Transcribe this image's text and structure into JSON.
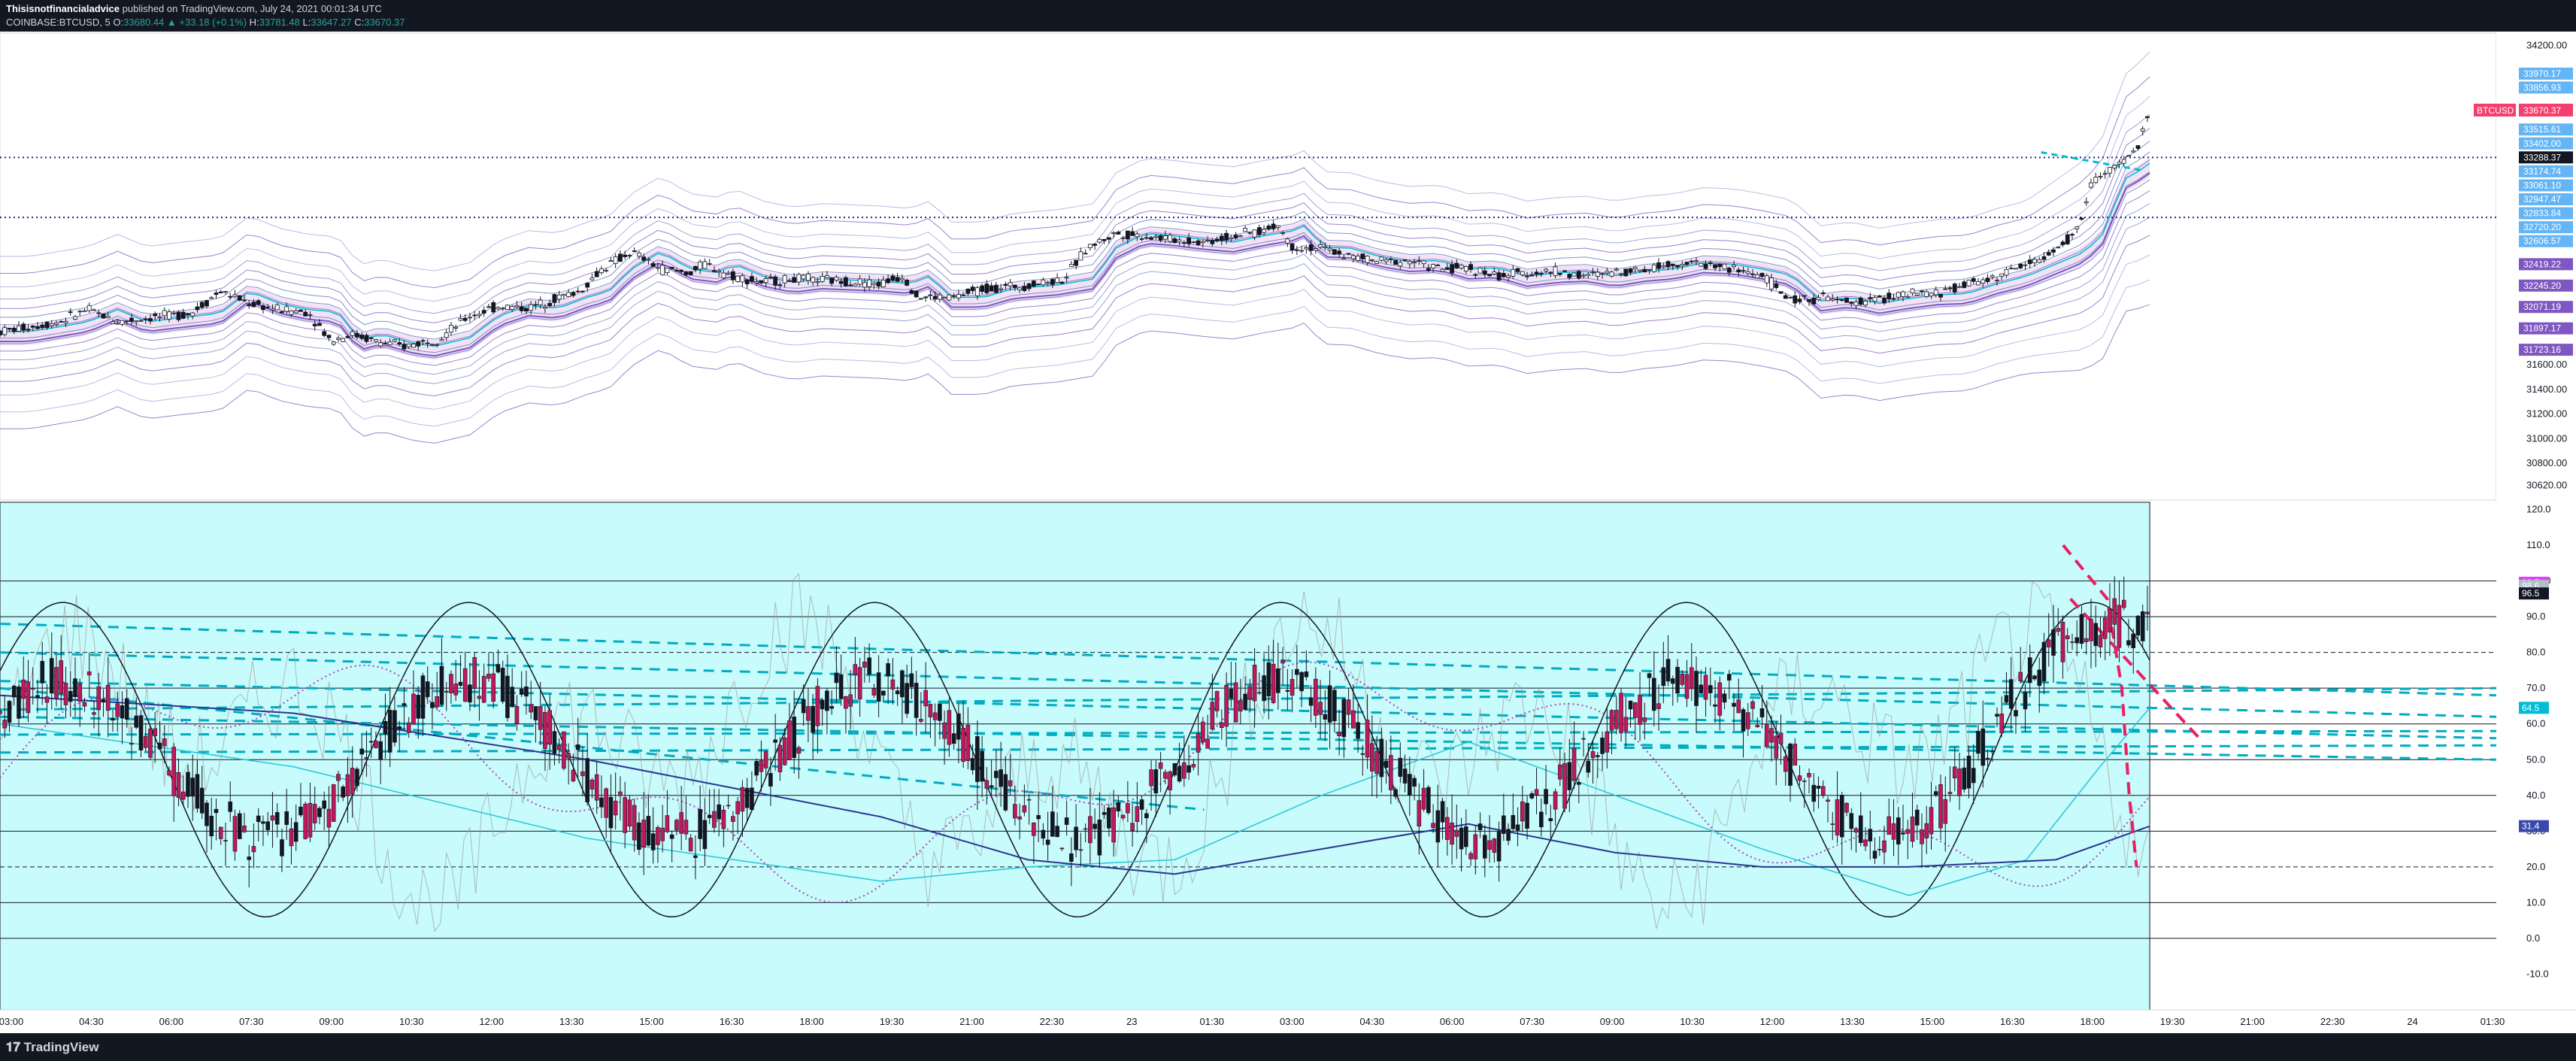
{
  "header": {
    "publisher": "Thisisnotfinancialadvice",
    "published_text": "published on TradingView.com, July 24, 2021 00:01:34 UTC",
    "symbol": "COINBASE:BTCUSD, 5",
    "open_label": "O:",
    "open_value": "33680.44",
    "change_value": "▲ +33.18 (+0.1%)",
    "high_label": "H:",
    "high_value": "33781.48",
    "low_label": "L:",
    "low_value": "33647.27",
    "close_label": "C:",
    "close_value": "33670.37"
  },
  "footer": {
    "logo_text": "TradingView"
  },
  "colors": {
    "up": "#ffffff",
    "down": "#c2185b",
    "osc_bg": "#c8fbfb",
    "accent_cyan": "#00bcd4",
    "pink": "#e91e63"
  },
  "chart_data": [
    {
      "type": "candlestick",
      "panel": "price",
      "ylim": [
        30500,
        34300
      ],
      "y_ticks": [
        "34200.00",
        "31600.00",
        "31400.00",
        "31200.00",
        "31000.00",
        "30800.00",
        "30620.00"
      ],
      "y_tick_values": [
        34200,
        31600,
        31400,
        31200,
        31000,
        30800,
        30620
      ],
      "price_badges": [
        {
          "label": "33970.17",
          "value": 33970.17,
          "color": "#64b5f6"
        },
        {
          "label": "33856.93",
          "value": 33856.93,
          "color": "#64b5f6"
        },
        {
          "label": "BTCUSD",
          "label2": "33670.37",
          "value": 33670.37,
          "color": "#f23f6d"
        },
        {
          "label": "33515.61",
          "value": 33515.61,
          "color": "#64b5f6"
        },
        {
          "label": "33402.00",
          "value": 33402.0,
          "color": "#64b5f6"
        },
        {
          "label": "33288.37",
          "value": 33288.37,
          "color": "#131722"
        },
        {
          "label": "33174.74",
          "value": 33174.74,
          "color": "#64b5f6"
        },
        {
          "label": "33061.10",
          "value": 33061.1,
          "color": "#64b5f6"
        },
        {
          "label": "32947.47",
          "value": 32947.47,
          "color": "#64b5f6"
        },
        {
          "label": "32833.84",
          "value": 32833.84,
          "color": "#64b5f6"
        },
        {
          "label": "32720.20",
          "value": 32720.2,
          "color": "#64b5f6"
        },
        {
          "label": "32606.57",
          "value": 32606.57,
          "color": "#64b5f6"
        },
        {
          "label": "32419.22",
          "value": 32419.22,
          "color": "#7e57c2"
        },
        {
          "label": "32245.20",
          "value": 32245.2,
          "color": "#7e57c2"
        },
        {
          "label": "32071.19",
          "value": 32071.19,
          "color": "#7e57c2"
        },
        {
          "label": "31897.17",
          "value": 31897.17,
          "color": "#7e57c2"
        },
        {
          "label": "31723.16",
          "value": 31723.16,
          "color": "#7e57c2"
        }
      ],
      "horizontal_levels": [
        33288.37,
        32800
      ],
      "price_path": [
        [
          0,
          31870
        ],
        [
          40,
          31950
        ],
        [
          60,
          32050
        ],
        [
          80,
          31950
        ],
        [
          100,
          31980
        ],
        [
          130,
          32020
        ],
        [
          150,
          32200
        ],
        [
          170,
          32100
        ],
        [
          190,
          32050
        ],
        [
          210,
          32030
        ],
        [
          225,
          31800
        ],
        [
          240,
          31850
        ],
        [
          260,
          31780
        ],
        [
          275,
          31750
        ],
        [
          300,
          31820
        ],
        [
          320,
          32000
        ],
        [
          340,
          32080
        ],
        [
          360,
          32060
        ],
        [
          380,
          32150
        ],
        [
          395,
          32200
        ],
        [
          410,
          32380
        ],
        [
          430,
          32520
        ],
        [
          450,
          32380
        ],
        [
          470,
          32350
        ],
        [
          480,
          32420
        ],
        [
          500,
          32320
        ],
        [
          520,
          32270
        ],
        [
          540,
          32300
        ],
        [
          560,
          32290
        ],
        [
          580,
          32280
        ],
        [
          600,
          32260
        ],
        [
          615,
          32330
        ],
        [
          625,
          32150
        ],
        [
          650,
          32150
        ],
        [
          670,
          32220
        ],
        [
          700,
          32250
        ],
        [
          725,
          32300
        ],
        [
          740,
          32550
        ],
        [
          760,
          32670
        ],
        [
          780,
          32650
        ],
        [
          800,
          32620
        ],
        [
          820,
          32600
        ],
        [
          840,
          32650
        ],
        [
          860,
          32690
        ],
        [
          870,
          32740
        ],
        [
          880,
          32560
        ],
        [
          900,
          32550
        ],
        [
          920,
          32480
        ],
        [
          940,
          32440
        ],
        [
          960,
          32450
        ],
        [
          980,
          32380
        ],
        [
          1000,
          32390
        ],
        [
          1020,
          32320
        ],
        [
          1040,
          32350
        ],
        [
          1060,
          32360
        ],
        [
          1080,
          32320
        ],
        [
          1100,
          32360
        ],
        [
          1120,
          32380
        ],
        [
          1140,
          32430
        ],
        [
          1160,
          32420
        ],
        [
          1180,
          32380
        ],
        [
          1200,
          32330
        ],
        [
          1220,
          32120
        ],
        [
          1240,
          32150
        ],
        [
          1260,
          32100
        ],
        [
          1280,
          32140
        ],
        [
          1300,
          32170
        ],
        [
          1320,
          32180
        ],
        [
          1340,
          32260
        ],
        [
          1360,
          32320
        ],
        [
          1380,
          32420
        ],
        [
          1400,
          32520
        ],
        [
          1415,
          32700
        ],
        [
          1425,
          33100
        ],
        [
          1440,
          33200
        ],
        [
          1455,
          33350
        ],
        [
          1464,
          33670
        ]
      ]
    },
    {
      "type": "oscillator",
      "panel": "oscillator",
      "ylim": [
        -20,
        122
      ],
      "y_ticks": [
        "120.0",
        "110.0",
        "100.0",
        "90.0",
        "80.0",
        "70.0",
        "60.0",
        "50.0",
        "40.0",
        "30.0",
        "20.0",
        "10.0",
        "0.0",
        "-10.0"
      ],
      "y_tick_values": [
        120,
        110,
        100,
        90,
        80,
        70,
        60,
        50,
        40,
        30,
        20,
        10,
        0,
        -10
      ],
      "value_badges": [
        {
          "label": "99.5",
          "value": 99.5,
          "color": "#e040fb"
        },
        {
          "label": "98.6",
          "value": 98.6,
          "color": "#b0bec5"
        },
        {
          "label": "96.5",
          "value": 96.5,
          "color": "#131722"
        },
        {
          "label": "64.5",
          "value": 64.5,
          "color": "#00bcd4"
        },
        {
          "label": "31.4",
          "value": 31.4,
          "color": "#3949ab"
        }
      ],
      "levels": [
        100,
        90,
        80,
        70,
        60,
        50,
        40,
        30,
        20,
        10,
        0
      ],
      "slow_line": [
        [
          0,
          68
        ],
        [
          200,
          63
        ],
        [
          400,
          50
        ],
        [
          600,
          34
        ],
        [
          700,
          22
        ],
        [
          800,
          18
        ],
        [
          1000,
          32
        ],
        [
          1100,
          24
        ],
        [
          1200,
          20
        ],
        [
          1300,
          20
        ],
        [
          1400,
          22
        ],
        [
          1464,
          31.4
        ]
      ],
      "cyan_line": [
        [
          0,
          60
        ],
        [
          200,
          48
        ],
        [
          400,
          28
        ],
        [
          600,
          16
        ],
        [
          700,
          20
        ],
        [
          800,
          22
        ],
        [
          900,
          40
        ],
        [
          1000,
          55
        ],
        [
          1100,
          40
        ],
        [
          1200,
          25
        ],
        [
          1300,
          12
        ],
        [
          1380,
          22
        ],
        [
          1430,
          48
        ],
        [
          1464,
          64.5
        ]
      ],
      "pink_trend": [
        [
          1405,
          110
        ],
        [
          1435,
          95
        ],
        [
          1445,
          70
        ],
        [
          1450,
          40
        ],
        [
          1455,
          20
        ]
      ]
    }
  ],
  "x_axis": {
    "labels": [
      "03:00",
      "04:30",
      "06:00",
      "07:30",
      "09:00",
      "10:30",
      "12:00",
      "13:30",
      "15:00",
      "16:30",
      "18:00",
      "19:30",
      "21:00",
      "22:30",
      "23",
      "01:30",
      "03:00",
      "04:30",
      "06:00",
      "07:30",
      "09:00",
      "10:30",
      "12:00",
      "13:30",
      "15:00",
      "16:30",
      "18:00",
      "19:30",
      "21:00",
      "22:30",
      "24",
      "01:30"
    ],
    "positions": [
      15,
      68,
      120,
      173,
      225,
      278,
      330,
      383,
      435,
      488,
      540,
      593,
      645,
      698,
      750,
      803,
      855,
      908,
      960,
      1013,
      1065,
      1118,
      1170,
      1223,
      1275,
      1328,
      1380,
      1433,
      1485,
      1538,
      1590,
      1643
    ]
  }
}
